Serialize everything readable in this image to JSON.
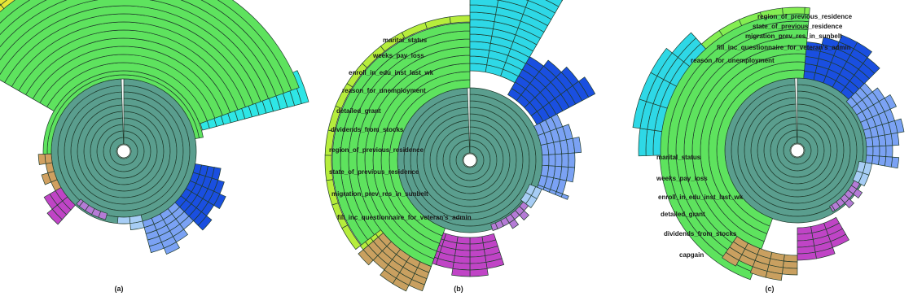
{
  "figure": {
    "panels": [
      {
        "id": "a",
        "caption": "(a)",
        "labels": []
      },
      {
        "id": "b",
        "caption": "(b)",
        "labels": [
          "marital_status",
          "weeks_pay_loss",
          "enroll_in_edu_inst_last_wk",
          "reason_for_unemployment",
          "detailed_grant",
          "dividends_from_stocks",
          "region_of_previous_residence",
          "state_of_previous_residence",
          "migration_prev_res_in_sunbelt",
          "fill_inc_questionnaire_for_veteran's_admin"
        ]
      },
      {
        "id": "c",
        "caption": "(c)",
        "labels": [
          "region_of_previous_residence",
          "state_of_previous_residence",
          "migration_prev_res_in_sunbelt",
          "fill_inc_questionnaire_for_veteran's_admin",
          "reason_for_unemployment",
          "marital_status",
          "weeks_pay_loss",
          "enroll_in_edu_inst_last_wk",
          "detailed_grant",
          "dividends_from_stocks",
          "capgain"
        ]
      }
    ],
    "colors": {
      "core": "#5a9e8e",
      "green": "#5ee35e",
      "outline": "#1f3b2c"
    }
  }
}
